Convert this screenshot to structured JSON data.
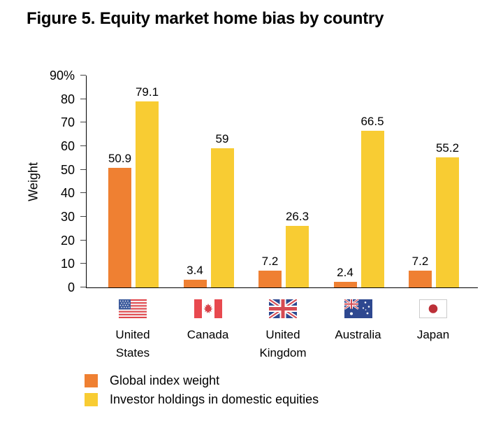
{
  "title": "Figure 5. Equity market home bias by country",
  "colors": {
    "orange": "#EF8032",
    "yellow": "#F8CC33",
    "text": "#000000"
  },
  "chart_data": {
    "type": "bar",
    "title": "Figure 5. Equity market home bias by country",
    "categories": [
      "United States",
      "Canada",
      "United Kingdom",
      "Australia",
      "Japan"
    ],
    "series": [
      {
        "name": "Global index weight",
        "color": "#EF8032",
        "values": [
          50.9,
          3.4,
          7.2,
          2.4,
          7.2
        ]
      },
      {
        "name": "Investor holdings in domestic equities",
        "color": "#F8CC33",
        "values": [
          79.1,
          59,
          26.3,
          66.5,
          55.2
        ]
      }
    ],
    "value_labels": [
      [
        "50.9",
        "3.4",
        "7.2",
        "2.4",
        "7.2"
      ],
      [
        "79.1",
        "59",
        "26.3",
        "66.5",
        "55.2"
      ]
    ],
    "xlabel": "",
    "ylabel": "Weight",
    "ylim": [
      0,
      90
    ],
    "ytick_labels": [
      "0",
      "10",
      "20",
      "30",
      "40",
      "50",
      "60",
      "70",
      "80",
      "90%"
    ],
    "grid": false,
    "legend_position": "bottom-left",
    "flag_icons": [
      "us-flag-icon",
      "canada-flag-icon",
      "uk-flag-icon",
      "australia-flag-icon",
      "japan-flag-icon"
    ]
  }
}
